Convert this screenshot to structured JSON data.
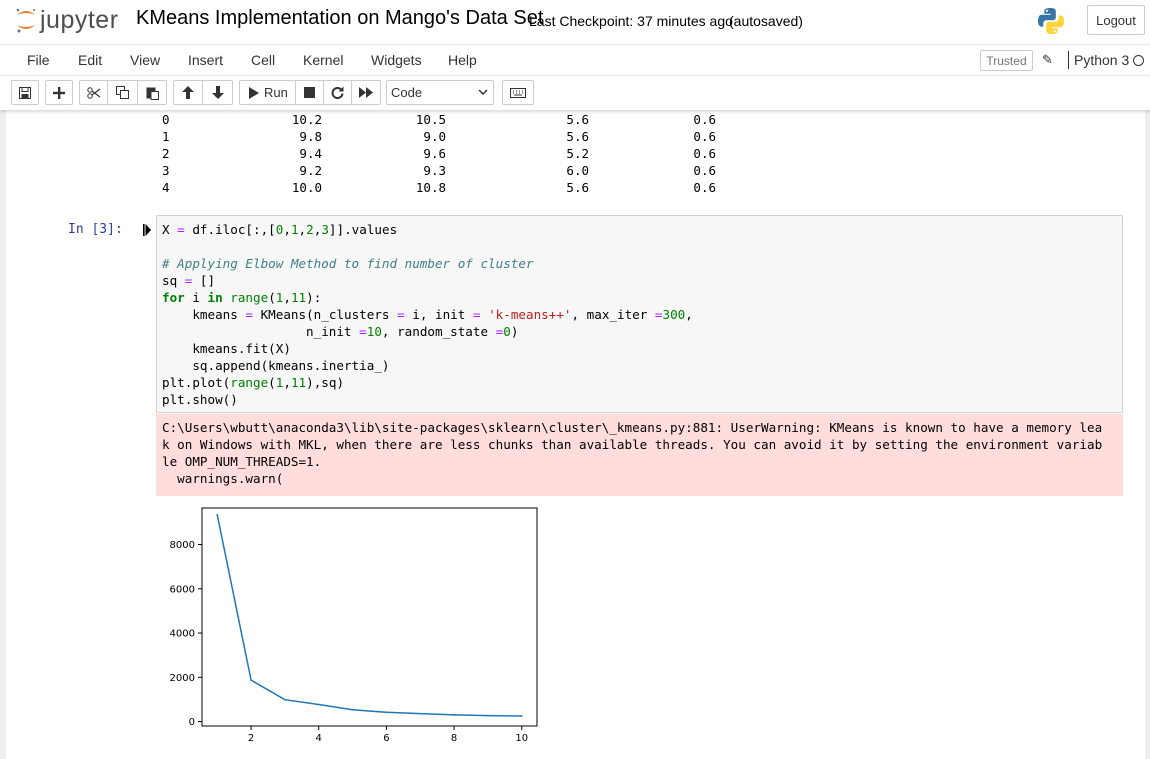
{
  "header": {
    "logo_text": "jupyter",
    "notebook_title": "KMeans Implementation on Mango's Data Set",
    "checkpoint": "Last Checkpoint: 37 minutes ago",
    "autosave": "(autosaved)",
    "logout_label": "Logout"
  },
  "menubar": {
    "items": [
      "File",
      "Edit",
      "View",
      "Insert",
      "Cell",
      "Kernel",
      "Widgets",
      "Help"
    ],
    "trusted_label": "Trusted",
    "kernel_name": "Python 3"
  },
  "toolbar": {
    "run_label": "Run",
    "cell_type": "Code",
    "icons": [
      "save-icon",
      "add-cell-icon",
      "cut-icon",
      "copy-icon",
      "paste-icon",
      "move-up-icon",
      "move-down-icon",
      "run-icon",
      "stop-icon",
      "restart-icon",
      "fast-forward-icon",
      "keyboard-icon"
    ]
  },
  "dataframe_output": {
    "rows": [
      [
        "0",
        "10.2",
        "10.5",
        "5.6",
        "0.6"
      ],
      [
        "1",
        "9.8",
        "9.0",
        "5.6",
        "0.6"
      ],
      [
        "2",
        "9.4",
        "9.6",
        "5.2",
        "0.6"
      ],
      [
        "3",
        "9.2",
        "9.3",
        "6.0",
        "0.6"
      ],
      [
        "4",
        "10.0",
        "10.8",
        "5.6",
        "0.6"
      ]
    ]
  },
  "cell": {
    "prompt": "In [3]:",
    "code_lines": [
      "X = df.iloc[:,[0,1,2,3]].values",
      "",
      "# Applying Elbow Method to find number of cluster",
      "sq = []",
      "for i in range(1,11):",
      "    kmeans = KMeans(n_clusters = i, init = 'k-means++', max_iter =300,",
      "                   n_init =10, random_state =0)",
      "    kmeans.fit(X)",
      "    sq.append(kmeans.inertia_)",
      "plt.plot(range(1,11),sq)",
      "plt.show()"
    ],
    "stderr_lines": [
      "C:\\Users\\wbutt\\anaconda3\\lib\\site-packages\\sklearn\\cluster\\_kmeans.py:881: UserWarning: KMeans is known to have a memory lea",
      "k on Windows with MKL, when there are less chunks than available threads. You can avoid it by setting the environment variab",
      "le OMP_NUM_THREADS=1.",
      "  warnings.warn("
    ]
  },
  "chart_data": {
    "type": "line",
    "x": [
      1,
      2,
      3,
      4,
      5,
      6,
      7,
      8,
      9,
      10
    ],
    "series": [
      {
        "values": [
          9350,
          1870,
          990,
          770,
          530,
          420,
          360,
          300,
          270,
          250
        ]
      }
    ],
    "xticks": [
      "2",
      "4",
      "6",
      "8",
      "10"
    ],
    "yticks": [
      "0",
      "2000",
      "4000",
      "6000",
      "8000"
    ],
    "xlim": [
      0.55,
      10.45
    ],
    "ylim": [
      -200,
      9650
    ],
    "line_color": "#1f77b4",
    "grid": false
  }
}
